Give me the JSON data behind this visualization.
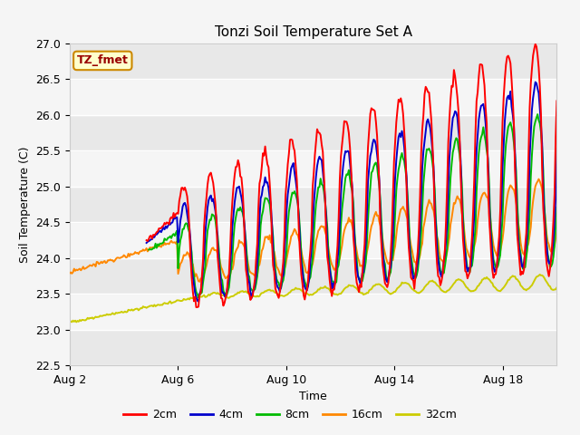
{
  "title": "Tonzi Soil Temperature Set A",
  "xlabel": "Time",
  "ylabel": "Soil Temperature (C)",
  "ylim": [
    22.5,
    27.0
  ],
  "yticks": [
    22.5,
    23.0,
    23.5,
    24.0,
    24.5,
    25.0,
    25.5,
    26.0,
    26.5,
    27.0
  ],
  "colors": {
    "2cm": "#ff0000",
    "4cm": "#0000cc",
    "8cm": "#00bb00",
    "16cm": "#ff8800",
    "32cm": "#cccc00"
  },
  "legend_label": "TZ_fmet",
  "legend_box_facecolor": "#ffffcc",
  "legend_box_edgecolor": "#cc8800",
  "x_ticks": [
    2,
    6,
    10,
    14,
    18
  ],
  "x_tick_labels": [
    "Aug 2",
    "Aug 6",
    "Aug 10",
    "Aug 14",
    "Aug 18"
  ],
  "fig_facecolor": "#f5f5f5",
  "plot_facecolor": "#ffffff",
  "band_colors": [
    "#e8e8e8",
    "#f5f5f5"
  ]
}
